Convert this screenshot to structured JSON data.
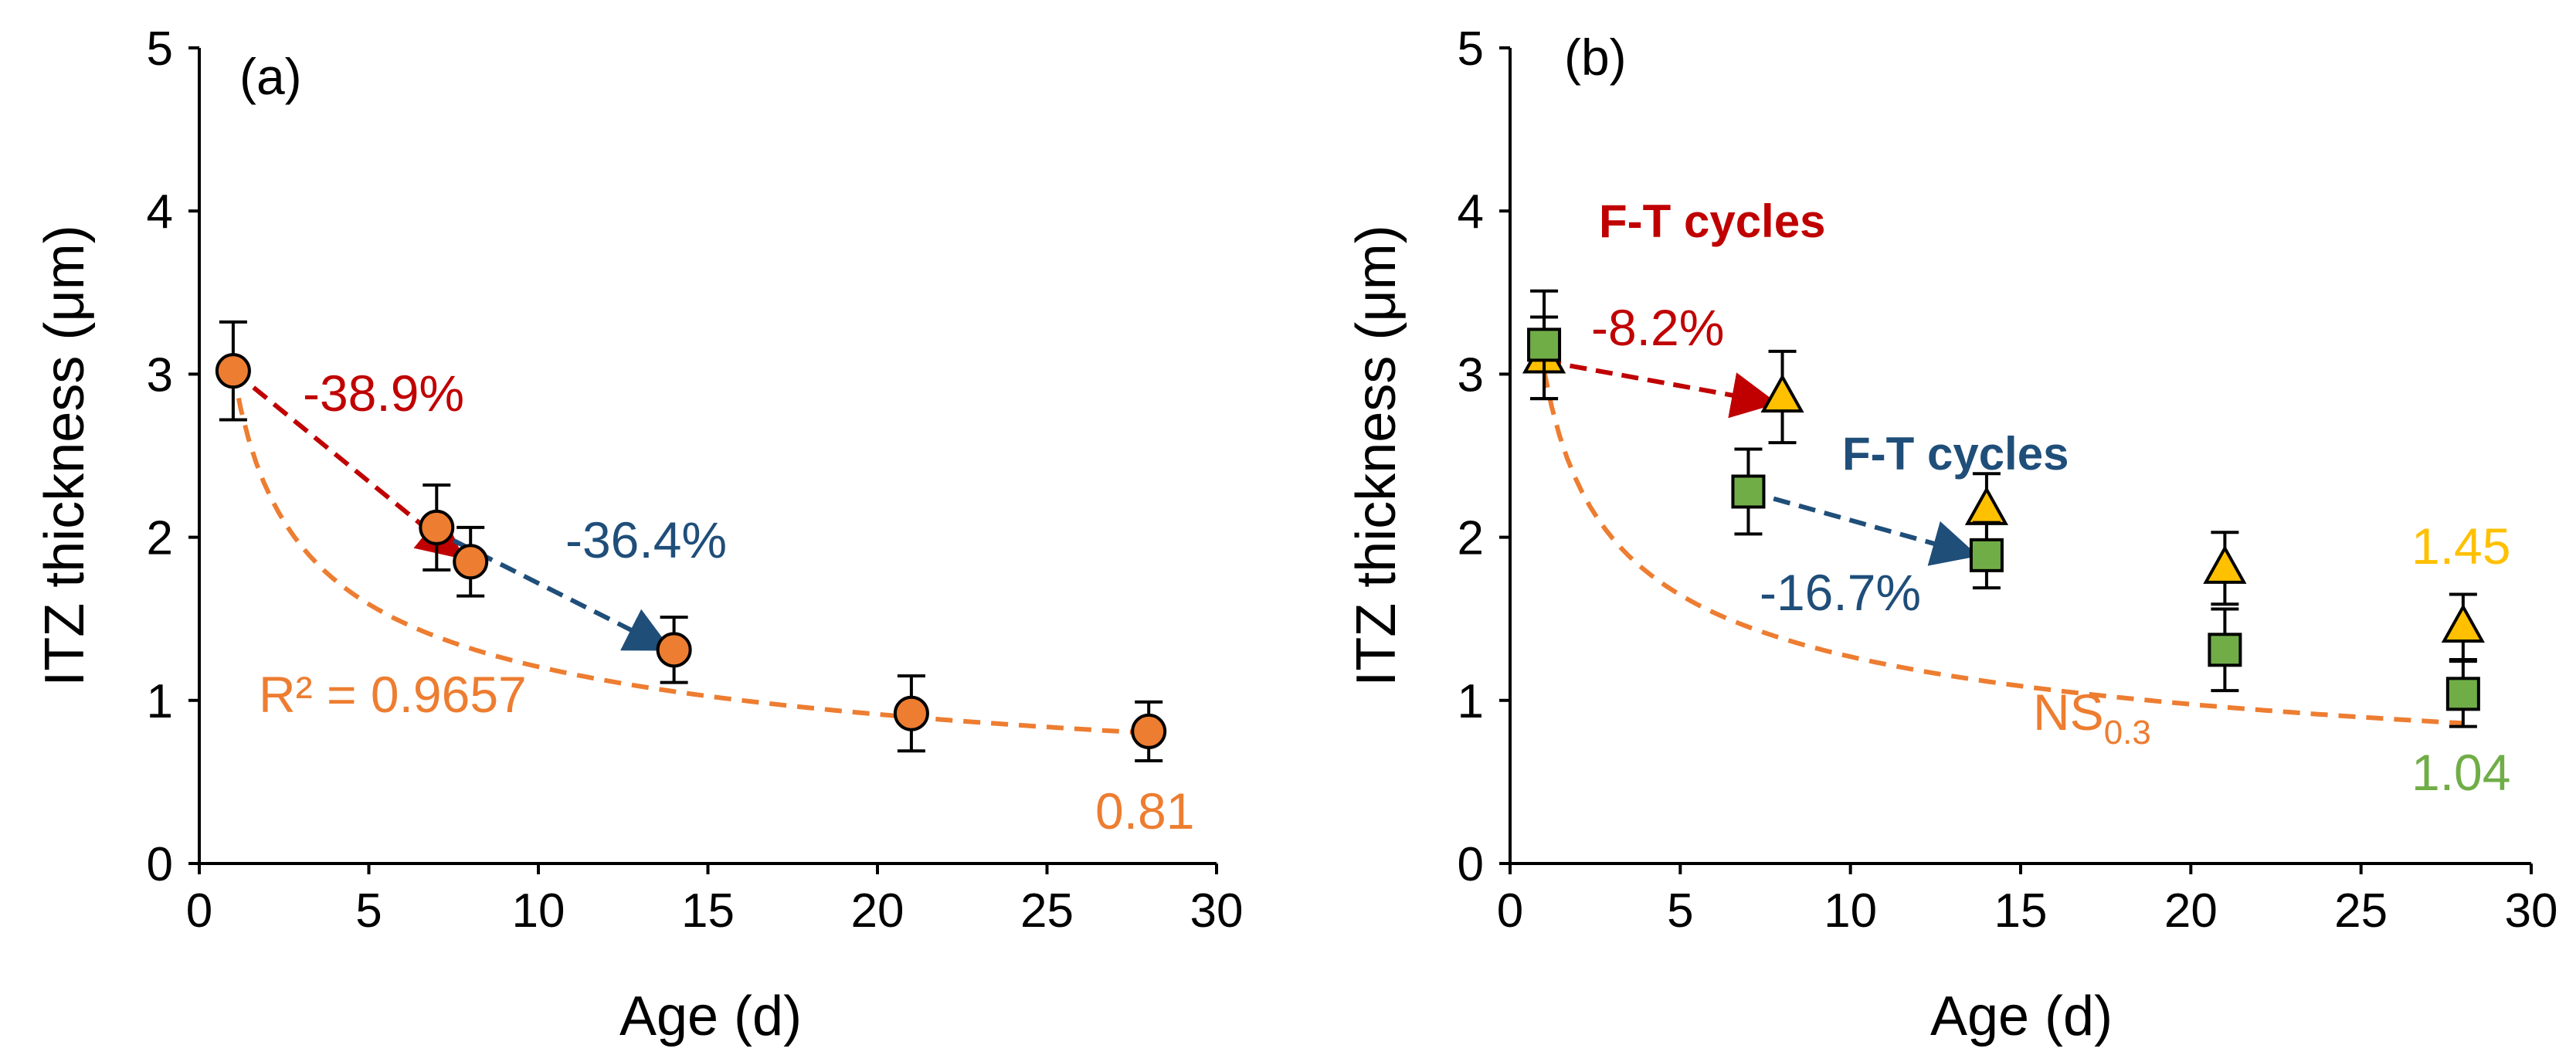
{
  "colors": {
    "orange_fill": "#ED7D31",
    "orange_line": "#ED7D31",
    "green_fill": "#70AD47",
    "yellow_fill": "#FFC000",
    "red_arrow": "#C00000",
    "blue_arrow": "#1F4E79",
    "axis": "#000000"
  },
  "chart_data": [
    {
      "type": "scatter",
      "panel_label": "(a)",
      "xlabel": "Age (d)",
      "ylabel": "ITZ thickness (μm)",
      "xlim": [
        0,
        30
      ],
      "ylim": [
        0,
        5
      ],
      "x_ticks": [
        "0",
        "5",
        "10",
        "15",
        "20",
        "25",
        "30"
      ],
      "y_ticks": [
        "0",
        "1",
        "2",
        "3",
        "4",
        "5"
      ],
      "series": [
        {
          "name": "ITZ thickness",
          "marker": "circle",
          "color": "#ED7D31",
          "points": [
            {
              "x": 1,
              "y": 3.02,
              "err": 0.3
            },
            {
              "x": 7,
              "y": 2.06,
              "err": 0.26
            },
            {
              "x": 8,
              "y": 1.85,
              "err": 0.21
            },
            {
              "x": 14,
              "y": 1.31,
              "err": 0.2
            },
            {
              "x": 21,
              "y": 0.92,
              "err": 0.23
            },
            {
              "x": 28,
              "y": 0.81,
              "err": 0.18
            }
          ]
        }
      ],
      "trendline": {
        "style": "dashed",
        "color": "#ED7D31",
        "x_from": 1,
        "x_to": 28,
        "y_from": 3.02,
        "y_to": 0.8,
        "r_squared_label": "R² = 0.9657"
      },
      "arrows": [
        {
          "color": "#C00000",
          "from": [
            1,
            3.02
          ],
          "to": [
            7.6,
            1.9
          ],
          "label": "-38.9%"
        },
        {
          "color": "#1F4E79",
          "from": [
            7.5,
            1.98
          ],
          "to": [
            13.7,
            1.33
          ],
          "label": "-36.4%"
        }
      ],
      "annotations": {
        "last_value": "0.81"
      }
    },
    {
      "type": "scatter",
      "panel_label": "(b)",
      "xlabel": "Age (d)",
      "ylabel": "ITZ thickness (μm)",
      "xlim": [
        0,
        30
      ],
      "ylim": [
        0,
        5
      ],
      "x_ticks": [
        "0",
        "5",
        "10",
        "15",
        "20",
        "25",
        "30"
      ],
      "y_ticks": [
        "0",
        "1",
        "2",
        "3",
        "4",
        "5"
      ],
      "series": [
        {
          "name": "triangles",
          "marker": "triangle",
          "color": "#FFC000",
          "points": [
            {
              "x": 1,
              "y": 3.1,
              "err": 0.25
            },
            {
              "x": 8,
              "y": 2.86,
              "err": 0.28
            },
            {
              "x": 14,
              "y": 2.17,
              "err": 0.22
            },
            {
              "x": 21,
              "y": 1.81,
              "err": 0.22
            },
            {
              "x": 28,
              "y": 1.45,
              "err": 0.2
            }
          ]
        },
        {
          "name": "squares",
          "marker": "square",
          "color": "#70AD47",
          "points": [
            {
              "x": 1,
              "y": 3.18,
              "err": 0.33
            },
            {
              "x": 7,
              "y": 2.28,
              "err": 0.26
            },
            {
              "x": 14,
              "y": 1.89,
              "err": 0.2
            },
            {
              "x": 21,
              "y": 1.31,
              "err": 0.25
            },
            {
              "x": 28,
              "y": 1.04,
              "err": 0.2
            }
          ]
        }
      ],
      "trendline": {
        "style": "dashed",
        "color": "#ED7D31",
        "x_from": 1,
        "x_to": 28,
        "y_from": 3.02,
        "y_to": 0.86,
        "label_main": "NS",
        "label_sub": "0.3"
      },
      "arrows": [
        {
          "color": "#C00000",
          "from": [
            1,
            3.08
          ],
          "to": [
            7.6,
            2.83
          ],
          "label": "-8.2%",
          "title": "F-T cycles"
        },
        {
          "color": "#1F4E79",
          "from": [
            7,
            2.28
          ],
          "to": [
            13.5,
            1.9
          ],
          "label": "-16.7%",
          "title": "F-T cycles"
        }
      ],
      "annotations": {
        "triangle_last": "1.45",
        "square_last": "1.04"
      }
    }
  ]
}
